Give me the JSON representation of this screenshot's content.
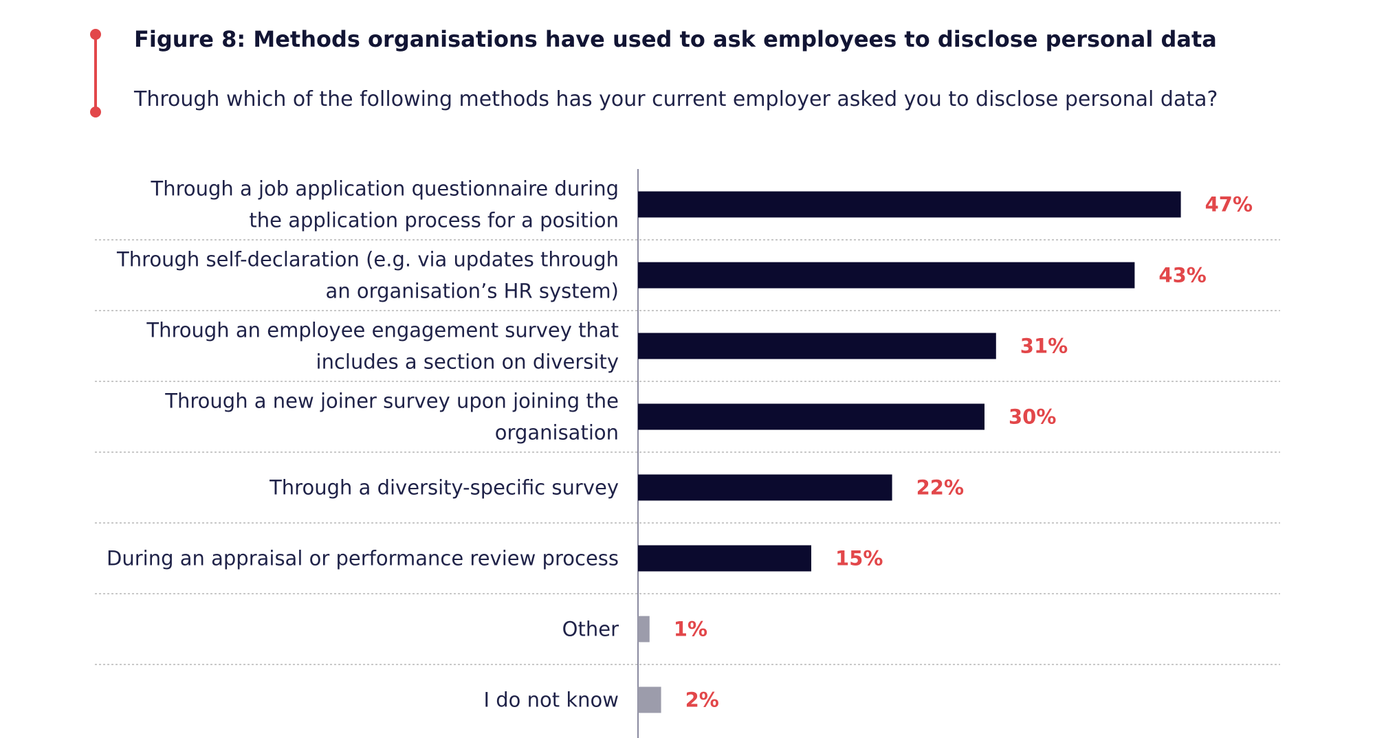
{
  "chart_data": {
    "type": "bar",
    "orientation": "horizontal",
    "title": "Figure 8: Methods organisations have used to ask employees to disclose personal data",
    "subtitle": "Through which of the following methods has your current employer asked you to disclose personal data?",
    "categories": [
      [
        "Through a job application questionnaire during",
        "the application process for a position"
      ],
      [
        "Through self-declaration (e.g. via updates through",
        "an organisation’s HR system)"
      ],
      [
        "Through an employee engagement survey that",
        "includes a section on diversity"
      ],
      [
        "Through a new joiner survey upon joining the",
        "organisation"
      ],
      [
        "Through a diversity-specific survey"
      ],
      [
        "During an appraisal or performance review process"
      ],
      [
        "Other"
      ],
      [
        "I do not know"
      ]
    ],
    "values": [
      47,
      43,
      31,
      30,
      22,
      15,
      1,
      2
    ],
    "value_labels": [
      "47%",
      "43%",
      "31%",
      "30%",
      "22%",
      "15%",
      "1%",
      "2%"
    ],
    "xlim": [
      0,
      50
    ],
    "unit": "%",
    "grid": false,
    "legend": "none",
    "colors": {
      "bar_primary": "#0b0a2e",
      "bar_secondary": "#9c9cab",
      "value_label": "#e2474a",
      "category_label": "#1f2248",
      "accent": "#e2474a",
      "title": "#121534",
      "separator": "#c8c8c8",
      "axis": "#8a8aa0"
    },
    "bar_color_by_index": [
      "primary",
      "primary",
      "primary",
      "primary",
      "primary",
      "primary",
      "secondary",
      "secondary"
    ]
  }
}
